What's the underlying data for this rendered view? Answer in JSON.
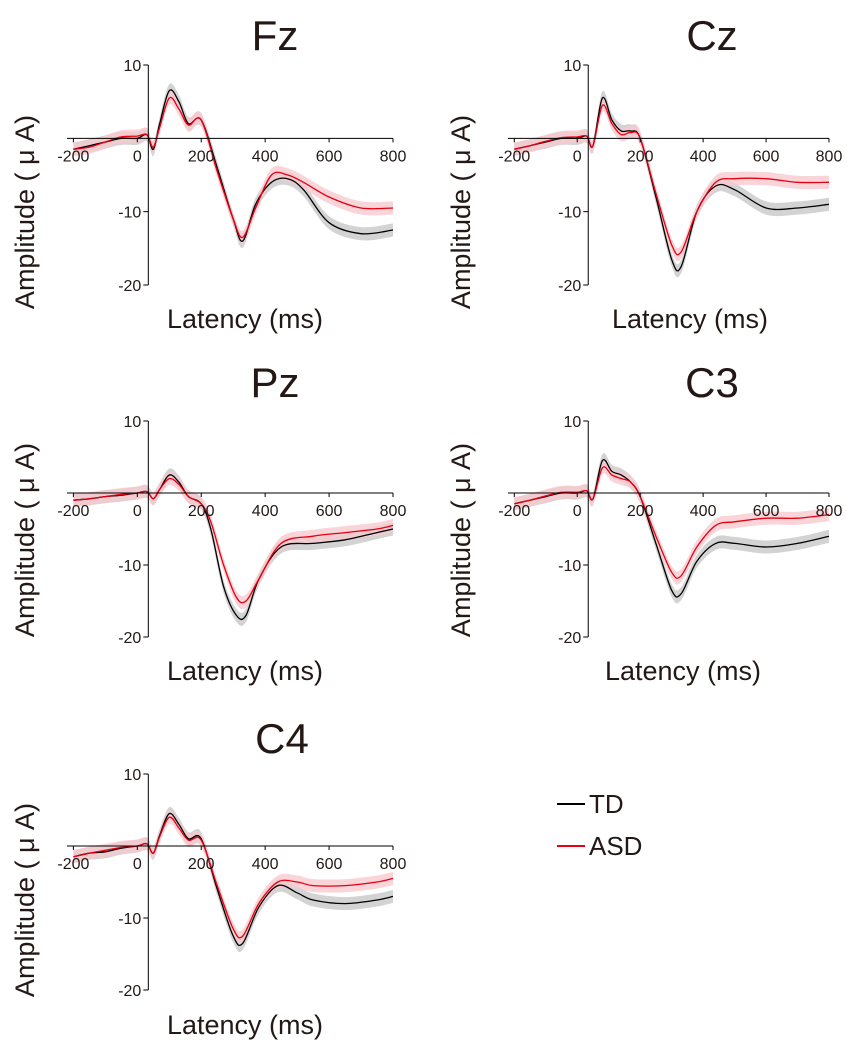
{
  "figure": {
    "legend": [
      {
        "label": "TD",
        "color": "#000000"
      },
      {
        "label": "ASD",
        "color": "#e60012"
      }
    ]
  },
  "chart_data": [
    {
      "type": "line",
      "title": "Fz",
      "xlabel": "Latency (ms)",
      "ylabel": "Amplitude ( μ A)",
      "xlim": [
        -220,
        800
      ],
      "ylim": [
        -20,
        10
      ],
      "xticks": [
        "-200",
        "0",
        "200",
        "400",
        "600",
        "800"
      ],
      "yticks": [
        "10",
        "-10",
        "-20"
      ],
      "x": [
        -200,
        -150,
        -100,
        -50,
        0,
        30,
        50,
        70,
        100,
        130,
        160,
        200,
        250,
        300,
        330,
        370,
        420,
        470,
        520,
        600,
        700,
        800
      ],
      "series": [
        {
          "name": "TD",
          "color": "#000000",
          "band": "#c8c8c8",
          "values": [
            -1.5,
            -1.0,
            -0.5,
            0.0,
            0.0,
            0.5,
            -1.5,
            2.0,
            6.5,
            5.0,
            2.0,
            2.5,
            -4.0,
            -11.0,
            -14.0,
            -9.0,
            -6.0,
            -5.5,
            -7.0,
            -11.5,
            -13.0,
            -12.5
          ]
        },
        {
          "name": "ASD",
          "color": "#e60012",
          "band": "#f7c9cf",
          "values": [
            -1.5,
            -1.2,
            -0.5,
            0.2,
            0.3,
            0.5,
            -1.2,
            1.5,
            5.5,
            4.0,
            1.8,
            2.5,
            -4.5,
            -11.0,
            -13.5,
            -9.5,
            -5.0,
            -5.0,
            -6.0,
            -8.0,
            -9.5,
            -9.5
          ]
        }
      ]
    },
    {
      "type": "line",
      "title": "Cz",
      "xlabel": "Latency (ms)",
      "ylabel": "Amplitude ( μ A)",
      "xlim": [
        -220,
        800
      ],
      "ylim": [
        -20,
        10
      ],
      "xticks": [
        "-200",
        "0",
        "200",
        "400",
        "600",
        "800"
      ],
      "yticks": [
        "10",
        "-10",
        "-20"
      ],
      "x": [
        -200,
        -150,
        -100,
        -50,
        0,
        30,
        50,
        80,
        110,
        140,
        170,
        200,
        250,
        300,
        330,
        380,
        440,
        500,
        600,
        700,
        800
      ],
      "series": [
        {
          "name": "TD",
          "color": "#000000",
          "band": "#c8c8c8",
          "values": [
            -1.5,
            -1.0,
            -0.5,
            0.0,
            0.0,
            0.3,
            -1.0,
            5.5,
            2.5,
            1.0,
            1.0,
            0.0,
            -8.0,
            -16.5,
            -17.5,
            -10.0,
            -6.5,
            -7.0,
            -9.5,
            -9.5,
            -9.0
          ]
        },
        {
          "name": "ASD",
          "color": "#e60012",
          "band": "#f7c9cf",
          "values": [
            -1.5,
            -1.0,
            -0.4,
            0.1,
            0.2,
            0.3,
            -1.0,
            4.5,
            2.0,
            0.5,
            0.8,
            0.0,
            -7.5,
            -14.5,
            -15.5,
            -10.0,
            -6.0,
            -5.5,
            -5.5,
            -6.0,
            -6.0
          ]
        }
      ]
    },
    {
      "type": "line",
      "title": "Pz",
      "xlabel": "Latency (ms)",
      "ylabel": "Amplitude ( μ A)",
      "xlim": [
        -220,
        800
      ],
      "ylim": [
        -20,
        10
      ],
      "xticks": [
        "-200",
        "0",
        "200",
        "400",
        "600",
        "800"
      ],
      "yticks": [
        "10",
        "-10",
        "-20"
      ],
      "x": [
        -200,
        -150,
        -100,
        -50,
        0,
        30,
        50,
        70,
        100,
        130,
        160,
        200,
        230,
        270,
        310,
        340,
        380,
        450,
        550,
        650,
        750,
        800
      ],
      "series": [
        {
          "name": "TD",
          "color": "#000000",
          "band": "#c8c8c8",
          "values": [
            -1.0,
            -0.8,
            -0.5,
            -0.3,
            0.0,
            0.2,
            -0.8,
            0.5,
            2.5,
            1.5,
            -0.5,
            -1.5,
            -5.0,
            -13.0,
            -17.0,
            -17.0,
            -12.0,
            -7.5,
            -7.0,
            -6.5,
            -5.5,
            -5.0
          ]
        },
        {
          "name": "ASD",
          "color": "#e60012",
          "band": "#f7c9cf",
          "values": [
            -1.0,
            -0.8,
            -0.5,
            -0.2,
            0.0,
            0.2,
            -0.8,
            0.5,
            2.0,
            1.2,
            -0.5,
            -1.5,
            -4.0,
            -10.0,
            -14.5,
            -15.0,
            -12.0,
            -7.0,
            -6.0,
            -5.5,
            -5.0,
            -4.5
          ]
        }
      ]
    },
    {
      "type": "line",
      "title": "C3",
      "xlabel": "Latency (ms)",
      "ylabel": "Amplitude ( μ A)",
      "xlim": [
        -220,
        800
      ],
      "ylim": [
        -20,
        10
      ],
      "xticks": [
        "-200",
        "0",
        "200",
        "400",
        "600",
        "800"
      ],
      "yticks": [
        "10",
        "-10",
        "-20"
      ],
      "x": [
        -200,
        -150,
        -100,
        -50,
        0,
        30,
        50,
        80,
        110,
        140,
        170,
        200,
        250,
        300,
        330,
        380,
        440,
        500,
        600,
        700,
        800
      ],
      "series": [
        {
          "name": "TD",
          "color": "#000000",
          "band": "#c8c8c8",
          "values": [
            -1.5,
            -1.0,
            -0.5,
            0.0,
            0.0,
            0.3,
            -0.8,
            4.5,
            3.0,
            2.5,
            1.5,
            -0.5,
            -7.0,
            -13.5,
            -14.0,
            -9.5,
            -7.0,
            -7.0,
            -7.5,
            -7.0,
            -6.0
          ]
        },
        {
          "name": "ASD",
          "color": "#e60012",
          "band": "#f7c9cf",
          "values": [
            -1.5,
            -1.0,
            -0.4,
            0.1,
            0.1,
            0.3,
            -0.8,
            3.5,
            2.5,
            2.0,
            1.5,
            -0.5,
            -6.0,
            -11.0,
            -11.5,
            -7.5,
            -4.5,
            -4.0,
            -3.5,
            -3.5,
            -3.0
          ]
        }
      ]
    },
    {
      "type": "line",
      "title": "C4",
      "xlabel": "Latency (ms)",
      "ylabel": "Amplitude ( μ A)",
      "xlim": [
        -220,
        800
      ],
      "ylim": [
        -20,
        10
      ],
      "xticks": [
        "-200",
        "0",
        "200",
        "400",
        "600",
        "800"
      ],
      "yticks": [
        "10",
        "-10",
        "-20"
      ],
      "x": [
        -200,
        -150,
        -100,
        -50,
        0,
        30,
        50,
        70,
        100,
        130,
        160,
        200,
        250,
        300,
        330,
        380,
        440,
        500,
        550,
        650,
        750,
        800
      ],
      "series": [
        {
          "name": "TD",
          "color": "#000000",
          "band": "#c8c8c8",
          "values": [
            -1.5,
            -1.0,
            -0.8,
            -0.3,
            0.0,
            0.3,
            -1.0,
            1.5,
            4.5,
            3.0,
            1.0,
            1.0,
            -6.0,
            -12.5,
            -13.5,
            -8.5,
            -5.5,
            -6.5,
            -7.5,
            -8.0,
            -7.5,
            -7.0
          ]
        },
        {
          "name": "ASD",
          "color": "#e60012",
          "band": "#f7c9cf",
          "values": [
            -1.5,
            -1.0,
            -0.6,
            -0.2,
            0.0,
            0.3,
            -1.0,
            1.3,
            4.0,
            2.5,
            0.8,
            0.8,
            -5.5,
            -11.5,
            -12.5,
            -8.0,
            -5.0,
            -5.0,
            -5.5,
            -5.5,
            -5.0,
            -4.5
          ]
        }
      ]
    }
  ]
}
